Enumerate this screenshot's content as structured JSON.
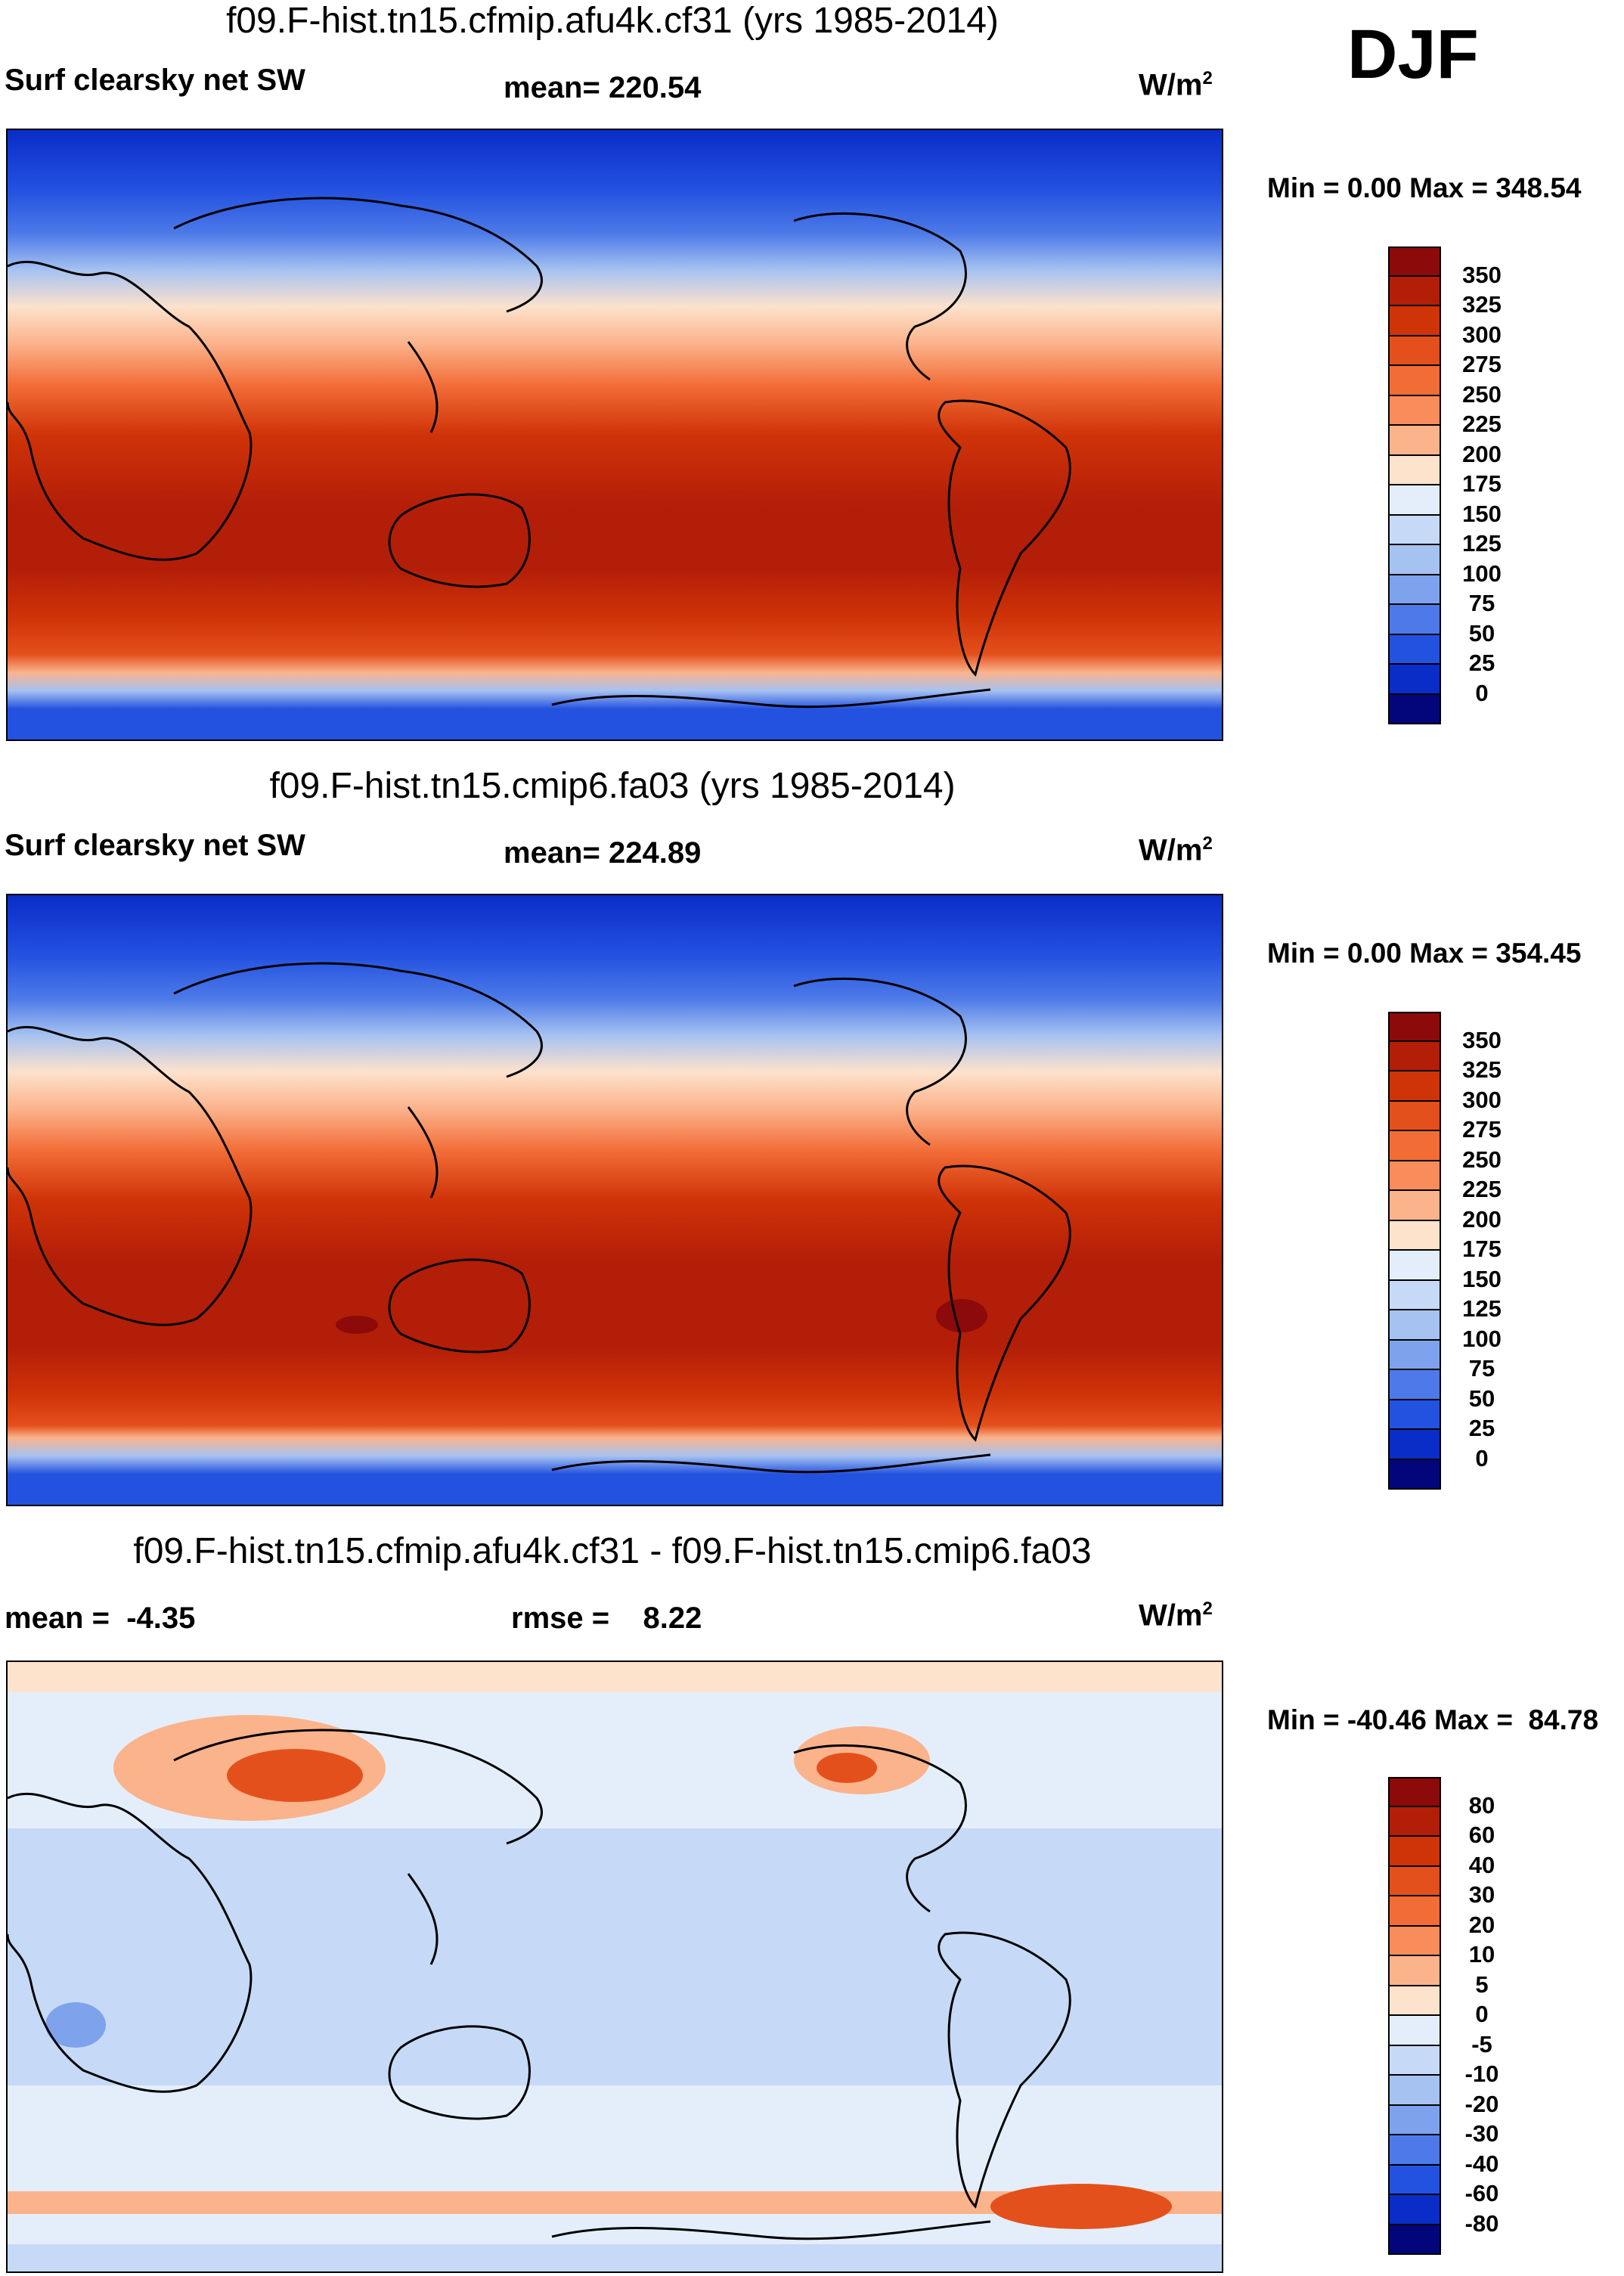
{
  "season": "DJF",
  "panels": [
    {
      "title": "f09.F-hist.tn15.cfmip.afu4k.cf31 (yrs 1985-2014)",
      "left_label": "Surf clearsky net SW",
      "center_label": "mean= 220.54",
      "units_base": "W/m",
      "units_sup": "2",
      "minmax": "Min =   0.00 Max = 348.54",
      "type": "absolute"
    },
    {
      "title": "f09.F-hist.tn15.cmip6.fa03 (yrs 1985-2014)",
      "left_label": "Surf clearsky net SW",
      "center_label": "mean= 224.89",
      "units_base": "W/m",
      "units_sup": "2",
      "minmax": "Min =   0.00 Max = 354.45",
      "type": "absolute"
    },
    {
      "title": "f09.F-hist.tn15.cfmip.afu4k.cf31 - f09.F-hist.tn15.cmip6.fa03",
      "left_label": "mean =  -4.35",
      "center_label": "rmse =    8.22",
      "units_base": "W/m",
      "units_sup": "2",
      "minmax": "Min = -40.46 Max =  84.78",
      "type": "difference"
    }
  ],
  "colorbars": {
    "absolute": {
      "labels": [
        "350",
        "325",
        "300",
        "275",
        "250",
        "225",
        "200",
        "175",
        "150",
        "125",
        "100",
        "75",
        "50",
        "25",
        "0"
      ],
      "colors": [
        "#8c0a0a",
        "#b31e08",
        "#cf3308",
        "#e4501c",
        "#f26c36",
        "#f88c5a",
        "#fbb38c",
        "#fde2cc",
        "#e4eefb",
        "#c6daf7",
        "#a6c2f1",
        "#7ea2ec",
        "#4d7ae8",
        "#2452e0",
        "#0a2dc8",
        "#02067a"
      ]
    },
    "difference": {
      "labels": [
        "80",
        "60",
        "40",
        "30",
        "20",
        "10",
        "5",
        "0",
        "-5",
        "-10",
        "-20",
        "-30",
        "-40",
        "-60",
        "-80"
      ],
      "colors": [
        "#8c0a0a",
        "#b31e08",
        "#cf3308",
        "#e4501c",
        "#f26c36",
        "#f88c5a",
        "#fbb38c",
        "#fde2cc",
        "#e4eefb",
        "#c6daf7",
        "#a6c2f1",
        "#7ea2ec",
        "#4d7ae8",
        "#2452e0",
        "#0a2dc8",
        "#02067a"
      ]
    }
  }
}
